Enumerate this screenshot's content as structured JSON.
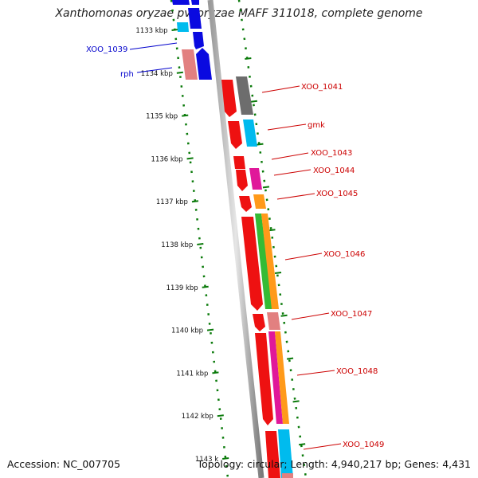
{
  "title": "Xanthomonas oryzae pv. oryzae MAFF 311018, complete genome",
  "accession": "Accession: NC_007705",
  "summary": "Topology: circular; Length: 4,940,217 bp; Genes: 4,431",
  "colors": {
    "red": "#ee1111",
    "dark_red": "#a80000",
    "blue": "#0a0ae0",
    "cyan": "#00bbee",
    "pink": "#e28080",
    "gray": "#6d6d6d",
    "magenta": "#e0189a",
    "orange": "#ff9a1a",
    "green": "#35bb35",
    "tick_green": "#0a7a0a",
    "label_red": "#cc0000",
    "label_blue": "#0000cc"
  },
  "scale_labels": [
    "1133 kbp",
    "1134 kbp",
    "1135 kbp",
    "1136 kbp",
    "1137 kbp",
    "1138 kbp",
    "1139 kbp",
    "1140 kbp",
    "1141 kbp",
    "1142 kbp",
    "1143 k"
  ],
  "gene_labels": [
    {
      "name": "XOO_1039",
      "color": "blue"
    },
    {
      "name": "rph",
      "color": "blue"
    },
    {
      "name": "XOO_1041",
      "color": "red"
    },
    {
      "name": "gmk",
      "color": "red"
    },
    {
      "name": "XOO_1043",
      "color": "red"
    },
    {
      "name": "XOO_1044",
      "color": "red"
    },
    {
      "name": "XOO_1045",
      "color": "red"
    },
    {
      "name": "XOO_1046",
      "color": "red"
    },
    {
      "name": "XOO_1047",
      "color": "red"
    },
    {
      "name": "XOO_1048",
      "color": "red"
    },
    {
      "name": "XOO_1049",
      "color": "red"
    }
  ]
}
